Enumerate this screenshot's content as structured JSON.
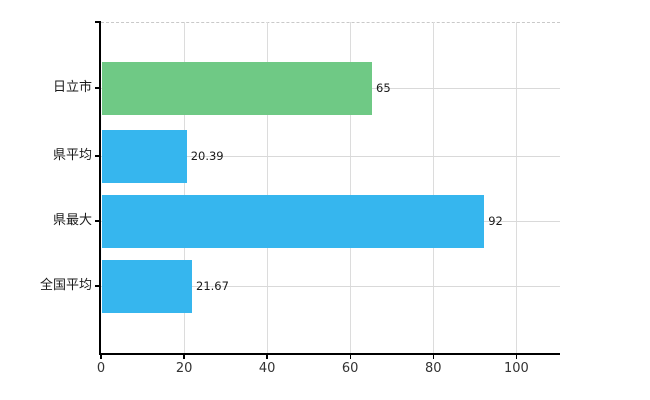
{
  "chart_data": {
    "type": "bar",
    "orientation": "horizontal",
    "title": "",
    "xlabel": "",
    "ylabel": "",
    "categories": [
      "日立市",
      "県平均",
      "県最大",
      "全国平均"
    ],
    "values": [
      65,
      20.39,
      92,
      21.67
    ],
    "value_labels": [
      "65",
      "20.39",
      "92",
      "21.67"
    ],
    "bar_colors": [
      "#6fc985",
      "#36b6ee",
      "#36b6ee",
      "#36b6ee"
    ],
    "x_ticks": [
      0,
      20,
      40,
      60,
      80,
      100
    ],
    "x_tick_labels": [
      "0",
      "20",
      "40",
      "60",
      "80",
      "100"
    ],
    "xlim": [
      0,
      110.5
    ],
    "grid": true,
    "legend": false,
    "colors": {
      "background": "#ffffff",
      "axis": "#000000",
      "gridline": "#dcdcdc",
      "top_border": "#c9c9c9",
      "tick_label": "#333333",
      "value_label": "#1a1a1a",
      "category_label": "#1a1a1a"
    }
  }
}
